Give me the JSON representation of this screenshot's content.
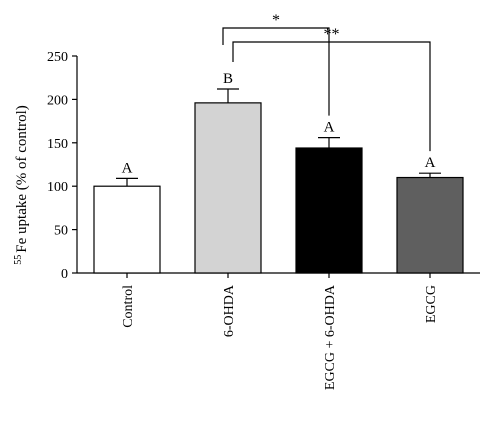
{
  "chart_data": {
    "type": "bar",
    "ylabel_sup": "55",
    "ylabel_main": "Fe uptake (% of control)",
    "xlabel": "",
    "ylim": [
      0,
      250
    ],
    "yticks": [
      "0",
      "50",
      "100",
      "150",
      "200",
      "250"
    ],
    "categories": [
      "Control",
      "6-OHDA",
      "EGCG + 6-OHDA",
      "EGCG"
    ],
    "values": [
      100,
      196,
      144,
      110
    ],
    "errors": [
      9,
      16,
      12,
      5
    ],
    "letters": [
      "A",
      "B",
      "A",
      "A"
    ],
    "bar_colors": [
      "#ffffff",
      "#d3d3d3",
      "#000000",
      "#5f5f5f"
    ],
    "significance": [
      {
        "from": "6-OHDA",
        "to": "EGCG + 6-OHDA",
        "label": "*"
      },
      {
        "from": "6-OHDA",
        "to": "EGCG",
        "label": "**"
      }
    ]
  }
}
